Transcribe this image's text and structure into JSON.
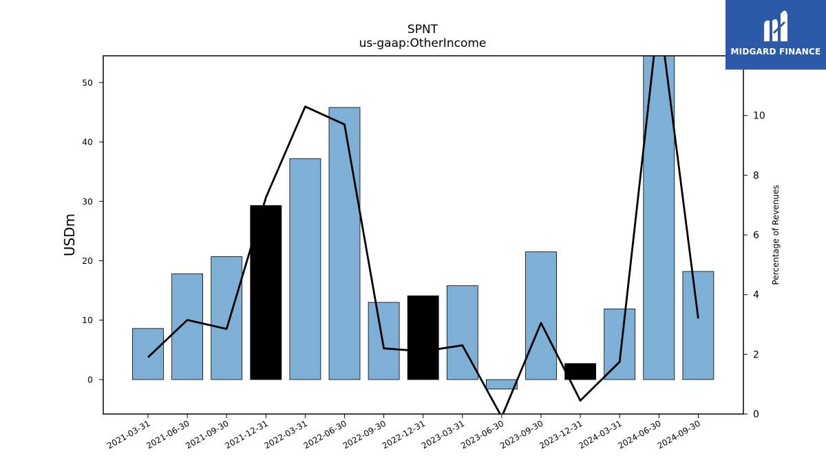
{
  "chart_data": {
    "type": "bar",
    "title": "SPNT",
    "subtitle": "us-gaap:OtherIncome",
    "ylabel": "USDm",
    "y2label": "Percentage of Revenues",
    "categories": [
      "2021-03-31",
      "2021-06-30",
      "2021-09-30",
      "2021-12-31",
      "2022-03-31",
      "2022-06-30",
      "2022-09-30",
      "2022-12-31",
      "2023-03-31",
      "2023-06-30",
      "2023-09-30",
      "2023-12-31",
      "2024-03-31",
      "2024-06-30",
      "2024-09-30"
    ],
    "series": [
      {
        "values": [
          8.6,
          17.8,
          20.7,
          29.3,
          37.2,
          45.8,
          13.0,
          14.1,
          15.8,
          -1.6,
          21.5,
          2.7,
          11.9,
          55.5,
          18.2
        ],
        "highlight": [
          false,
          false,
          false,
          true,
          false,
          false,
          false,
          true,
          false,
          false,
          false,
          true,
          false,
          false,
          false
        ],
        "color": "#7eb0d5",
        "highlight_color": "#000000",
        "axis": "left"
      },
      {
        "values": [
          1.9,
          3.15,
          2.85,
          7.25,
          10.3,
          9.7,
          2.2,
          2.1,
          2.3,
          -0.1,
          3.05,
          0.45,
          1.75,
          13.5,
          3.2
        ],
        "color": "#000000",
        "type": "line",
        "axis": "right"
      }
    ],
    "ylim": [
      -5.8,
      54.5
    ],
    "y2lim": [
      0,
      12.0
    ],
    "yticks": [
      0,
      10,
      20,
      30,
      40,
      50
    ],
    "y2ticks": [
      0,
      2,
      4,
      6,
      8,
      10
    ],
    "grid": false
  },
  "logo": {
    "text": "MIDGARD FINANCE",
    "color": "#2c5aa8"
  }
}
